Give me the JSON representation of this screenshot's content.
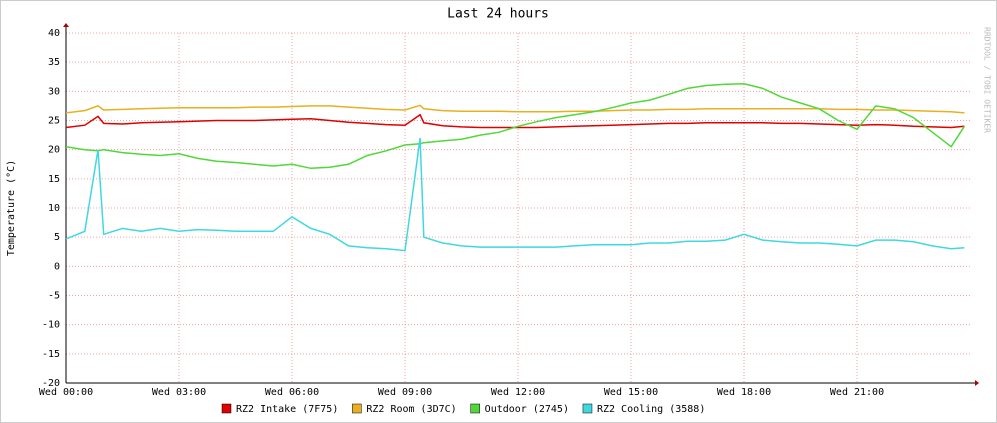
{
  "chart_data": {
    "type": "line",
    "title": "Last 24 hours",
    "y_label": "Temperature (°C)",
    "watermark": "RRDTOOL / TOBI OETIKER",
    "x": [
      0,
      0.5,
      0.85,
      1,
      1.5,
      2,
      2.5,
      3,
      3.5,
      4,
      4.5,
      5,
      5.5,
      6,
      6.5,
      7,
      7.5,
      8,
      8.5,
      9,
      9.4,
      9.5,
      10,
      10.5,
      11,
      11.5,
      12,
      12.5,
      13,
      13.5,
      14,
      14.5,
      15,
      15.5,
      16,
      16.5,
      17,
      17.5,
      18,
      18.5,
      19,
      19.5,
      20,
      20.5,
      21,
      21.5,
      22,
      22.5,
      23,
      23.5,
      23.85
    ],
    "xlim": [
      0,
      24
    ],
    "xticks": [
      {
        "value": 0,
        "label": "Wed 00:00"
      },
      {
        "value": 3,
        "label": "Wed 03:00"
      },
      {
        "value": 6,
        "label": "Wed 06:00"
      },
      {
        "value": 9,
        "label": "Wed 09:00"
      },
      {
        "value": 12,
        "label": "Wed 12:00"
      },
      {
        "value": 15,
        "label": "Wed 15:00"
      },
      {
        "value": 18,
        "label": "Wed 18:00"
      },
      {
        "value": 21,
        "label": "Wed 21:00"
      }
    ],
    "ylim": [
      -20,
      40
    ],
    "yticks": [
      -20,
      -15,
      -10,
      -5,
      0,
      5,
      10,
      15,
      20,
      25,
      30,
      35,
      40
    ],
    "grid": true,
    "legend": "bottom",
    "series": [
      {
        "name": "RZ2 Intake (7F75)",
        "color": "#e00000",
        "values": [
          23.8,
          24.2,
          25.7,
          24.5,
          24.4,
          24.6,
          24.7,
          24.8,
          24.9,
          25,
          25,
          25,
          25.1,
          25.2,
          25.3,
          25,
          24.7,
          24.5,
          24.3,
          24.2,
          26,
          24.6,
          24.1,
          23.9,
          23.8,
          23.8,
          23.8,
          23.8,
          23.9,
          24,
          24.1,
          24.2,
          24.3,
          24.4,
          24.5,
          24.5,
          24.6,
          24.6,
          24.6,
          24.6,
          24.5,
          24.5,
          24.4,
          24.3,
          24.2,
          24.3,
          24.2,
          24,
          23.9,
          23.8,
          24
        ]
      },
      {
        "name": "RZ2 Room (3D7C)",
        "color": "#e8b020",
        "values": [
          26.3,
          26.7,
          27.5,
          26.8,
          26.9,
          27,
          27.1,
          27.2,
          27.2,
          27.2,
          27.2,
          27.3,
          27.3,
          27.4,
          27.5,
          27.5,
          27.3,
          27.1,
          26.9,
          26.8,
          27.6,
          27,
          26.7,
          26.6,
          26.6,
          26.6,
          26.5,
          26.5,
          26.5,
          26.6,
          26.6,
          26.7,
          26.8,
          26.8,
          26.9,
          26.9,
          27,
          27,
          27,
          27,
          27,
          27,
          27,
          26.9,
          26.9,
          26.8,
          26.8,
          26.7,
          26.6,
          26.5,
          26.3
        ]
      },
      {
        "name": "Outdoor (2745)",
        "color": "#50d838",
        "values": [
          20.5,
          20,
          19.8,
          20,
          19.5,
          19.2,
          19,
          19.3,
          18.5,
          18,
          17.8,
          17.5,
          17.2,
          17.5,
          16.8,
          17,
          17.5,
          19,
          19.8,
          20.8,
          21,
          21.2,
          21.5,
          21.8,
          22.5,
          23,
          24,
          24.8,
          25.5,
          26,
          26.5,
          27.2,
          28,
          28.5,
          29.5,
          30.5,
          31,
          31.2,
          31.3,
          30.5,
          29,
          28,
          27,
          25,
          23.5,
          27.5,
          27,
          25.5,
          23,
          20.5,
          24
        ]
      },
      {
        "name": "RZ2 Cooling (3588)",
        "color": "#40d8e0",
        "values": [
          4.7,
          6,
          20,
          5.5,
          6.5,
          6,
          6.5,
          6,
          6.3,
          6.2,
          6,
          6,
          6,
          8.5,
          6.5,
          5.5,
          3.5,
          3.2,
          3,
          2.7,
          22,
          5,
          4,
          3.5,
          3.3,
          3.3,
          3.3,
          3.3,
          3.3,
          3.5,
          3.7,
          3.7,
          3.7,
          4,
          4,
          4.3,
          4.3,
          4.5,
          5.5,
          4.5,
          4.2,
          4,
          4,
          3.8,
          3.5,
          4.5,
          4.5,
          4.2,
          3.5,
          3,
          3.2
        ]
      }
    ]
  }
}
